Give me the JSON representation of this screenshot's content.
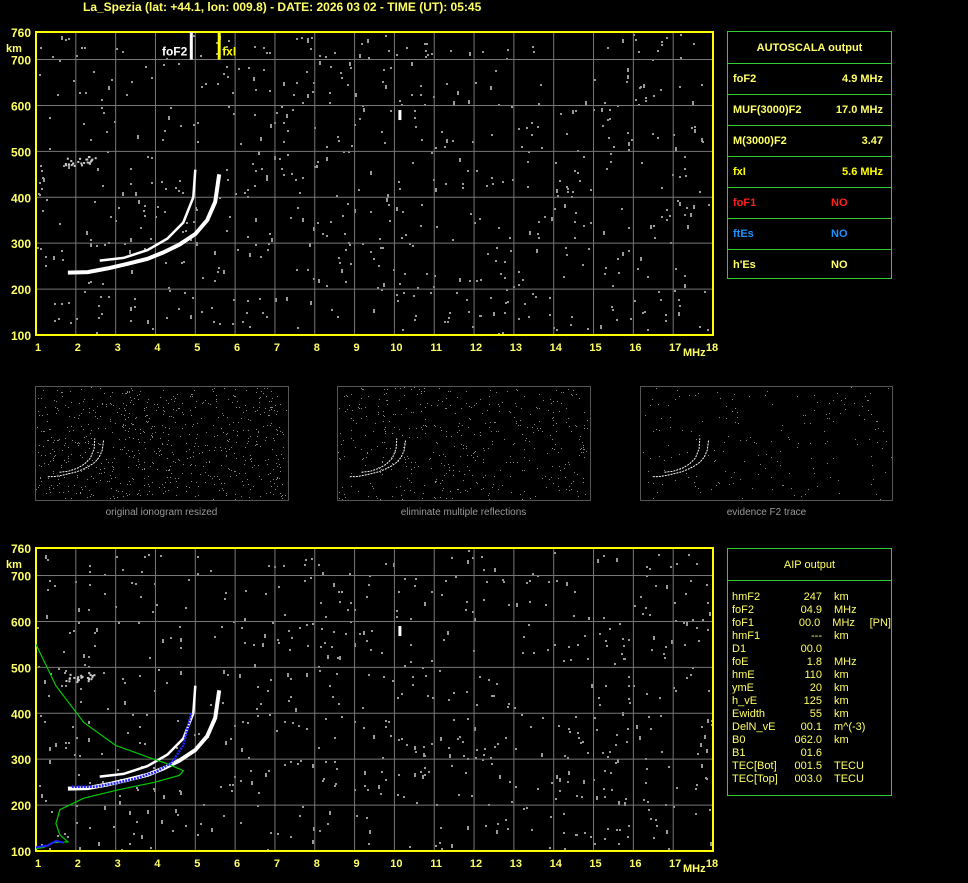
{
  "header": {
    "title": "La_Spezia (lat: +44.1, lon: 009.8) - DATE: 2026 03 02 - TIME (UT): 05:45"
  },
  "colors": {
    "axis": "#ffff00",
    "grid": "#808080",
    "panel_border": "#33cc33",
    "text": "#ffff66",
    "foF1": "#ff2020",
    "ftEs": "#1e90ff",
    "trace": "#ffffff",
    "profile": "#00cc00",
    "fit": "#0000ff"
  },
  "chart_data": [
    {
      "type": "scatter",
      "name_plot": "top-ionogram",
      "xlabel": "MHz",
      "ylabel": "km",
      "xlim": [
        1,
        18
      ],
      "ylim": [
        100,
        760
      ],
      "xticks": [
        "1",
        "2",
        "3",
        "4",
        "5",
        "6",
        "7",
        "8",
        "9",
        "10",
        "11",
        "12",
        "13",
        "14",
        "15",
        "16",
        "17",
        "18"
      ],
      "yticks": [
        "100",
        "200",
        "300",
        "400",
        "500",
        "600",
        "700",
        "760"
      ],
      "grid": true,
      "markers": [
        {
          "label": "foF2",
          "x": 4.9,
          "color": "#ffffff"
        },
        {
          "label": "fxI",
          "x": 5.6,
          "color": "#ffff00"
        }
      ],
      "traces": [
        {
          "points": [
            [
              1.8,
              236
            ],
            [
              2.3,
              237
            ],
            [
              2.8,
              245
            ],
            [
              3.3,
              255
            ],
            [
              3.8,
              266
            ],
            [
              4.2,
              280
            ],
            [
              4.6,
              297
            ],
            [
              5.0,
              320
            ],
            [
              5.3,
              350
            ],
            [
              5.5,
              390
            ],
            [
              5.6,
              450
            ]
          ]
        },
        {
          "points": [
            [
              2.6,
              262
            ],
            [
              3.2,
              268
            ],
            [
              3.8,
              285
            ],
            [
              4.3,
              310
            ],
            [
              4.7,
              345
            ],
            [
              4.95,
              400
            ],
            [
              5.0,
              460
            ]
          ]
        }
      ]
    },
    {
      "type": "scatter",
      "name_plot": "bottom-ionogram",
      "xlabel": "MHz",
      "ylabel": "km",
      "xlim": [
        1,
        18
      ],
      "ylim": [
        100,
        760
      ],
      "xticks": [
        "1",
        "2",
        "3",
        "4",
        "5",
        "6",
        "7",
        "8",
        "9",
        "10",
        "11",
        "12",
        "13",
        "14",
        "15",
        "16",
        "17",
        "18"
      ],
      "yticks": [
        "100",
        "200",
        "300",
        "400",
        "500",
        "600",
        "700",
        "760"
      ],
      "grid": true,
      "profile": {
        "points": [
          [
            1.0,
            550
          ],
          [
            1.5,
            460
          ],
          [
            2.2,
            380
          ],
          [
            3.0,
            330
          ],
          [
            3.8,
            305
          ],
          [
            4.3,
            290
          ],
          [
            4.7,
            275
          ],
          [
            4.6,
            265
          ],
          [
            4.0,
            250
          ],
          [
            3.0,
            232
          ],
          [
            2.2,
            215
          ],
          [
            1.6,
            190
          ],
          [
            1.5,
            160
          ],
          [
            1.6,
            135
          ],
          [
            1.8,
            120
          ],
          [
            1.4,
            118
          ],
          [
            1.2,
            108
          ],
          [
            1.0,
            105
          ]
        ]
      },
      "fit": {
        "points": [
          [
            1.9,
            240
          ],
          [
            2.5,
            240
          ],
          [
            3.0,
            248
          ],
          [
            3.5,
            258
          ],
          [
            4.0,
            272
          ],
          [
            4.4,
            292
          ],
          [
            4.7,
            330
          ],
          [
            4.9,
            400
          ]
        ]
      }
    }
  ],
  "autoscala": {
    "title": "AUTOSCALA output",
    "rows": [
      {
        "key": "foF2",
        "value": "4.9 MHz",
        "color": "#ffff66"
      },
      {
        "key": "MUF(3000)F2",
        "value": "17.0 MHz",
        "color": "#ffff66"
      },
      {
        "key": "M(3000)F2",
        "value": "3.47",
        "color": "#ffff66"
      },
      {
        "key": "fxI",
        "value": "5.6 MHz",
        "color": "#ffff00"
      },
      {
        "key": "foF1",
        "value": "NO",
        "color": "#ff2020"
      },
      {
        "key": "ftEs",
        "value": "NO",
        "color": "#1e90ff"
      },
      {
        "key": "h'Es",
        "value": "NO",
        "color": "#ffff66"
      }
    ]
  },
  "thumbnails": [
    {
      "caption": "original ionogram resized"
    },
    {
      "caption": "eliminate multiple reflections"
    },
    {
      "caption": "evidence F2 trace"
    }
  ],
  "aip": {
    "title": "AIP output",
    "rows": [
      {
        "key": "hmF2",
        "value": "247",
        "unit": "km",
        "extra": ""
      },
      {
        "key": "foF2",
        "value": "04.9",
        "unit": "MHz",
        "extra": ""
      },
      {
        "key": "foF1",
        "value": "00.0",
        "unit": "MHz",
        "extra": "[PN]"
      },
      {
        "key": "hmF1",
        "value": "---",
        "unit": "km",
        "extra": ""
      },
      {
        "key": "D1",
        "value": "00.0",
        "unit": "",
        "extra": ""
      },
      {
        "key": "foE",
        "value": "1.8",
        "unit": "MHz",
        "extra": ""
      },
      {
        "key": "hmE",
        "value": "110",
        "unit": "km",
        "extra": ""
      },
      {
        "key": "ymE",
        "value": "20",
        "unit": "km",
        "extra": ""
      },
      {
        "key": "h_vE",
        "value": "125",
        "unit": "km",
        "extra": ""
      },
      {
        "key": "Ewidth",
        "value": "55",
        "unit": "km",
        "extra": ""
      },
      {
        "key": "DelN_vE",
        "value": "00.1",
        "unit": "m^(-3)",
        "extra": ""
      },
      {
        "key": "B0",
        "value": "062.0",
        "unit": "km",
        "extra": ""
      },
      {
        "key": "B1",
        "value": "01.6",
        "unit": "",
        "extra": ""
      },
      {
        "key": "TEC[Bot]",
        "value": "001.5",
        "unit": "TECU",
        "extra": ""
      },
      {
        "key": "TEC[Top]",
        "value": "003.0",
        "unit": "TECU",
        "extra": ""
      }
    ]
  }
}
